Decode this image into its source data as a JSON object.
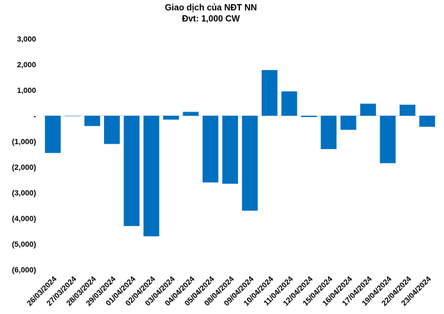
{
  "chart_data": {
    "type": "bar",
    "title": "Giao dịch của NĐT NN",
    "subtitle": "Đvt: 1,000 CW",
    "xlabel": "",
    "ylabel": "",
    "categories": [
      "26/03/2024",
      "27/03/2024",
      "28/03/2024",
      "29/03/2024",
      "01/04/2024",
      "02/04/2024",
      "03/04/2024",
      "04/04/2024",
      "05/04/2024",
      "08/04/2024",
      "09/04/2024",
      "10/04/2024",
      "11/04/2024",
      "12/04/2024",
      "15/04/2024",
      "16/04/2024",
      "17/04/2024",
      "19/04/2024",
      "22/04/2024",
      "23/04/2024"
    ],
    "series": [
      {
        "values": [
          -1450,
          0,
          -400,
          -1100,
          -4300,
          -4700,
          -150,
          150,
          -2600,
          -2650,
          -3700,
          1780,
          950,
          -50,
          -1300,
          -550,
          470,
          -1850,
          430,
          -430
        ]
      }
    ],
    "ylim": [
      -6000,
      3000
    ],
    "yticks": [
      3000,
      2000,
      1000,
      0,
      -1000,
      -2000,
      -3000,
      -4000,
      -5000,
      -6000
    ],
    "ytick_labels": [
      "3,000",
      "2,000",
      "1,000",
      "-",
      "(1,000)",
      "(2,000)",
      "(3,000)",
      "(4,000)",
      "(5,000)",
      "(6,000)"
    ],
    "bar_color": "#0070C0",
    "grid": false,
    "legend": "none"
  }
}
